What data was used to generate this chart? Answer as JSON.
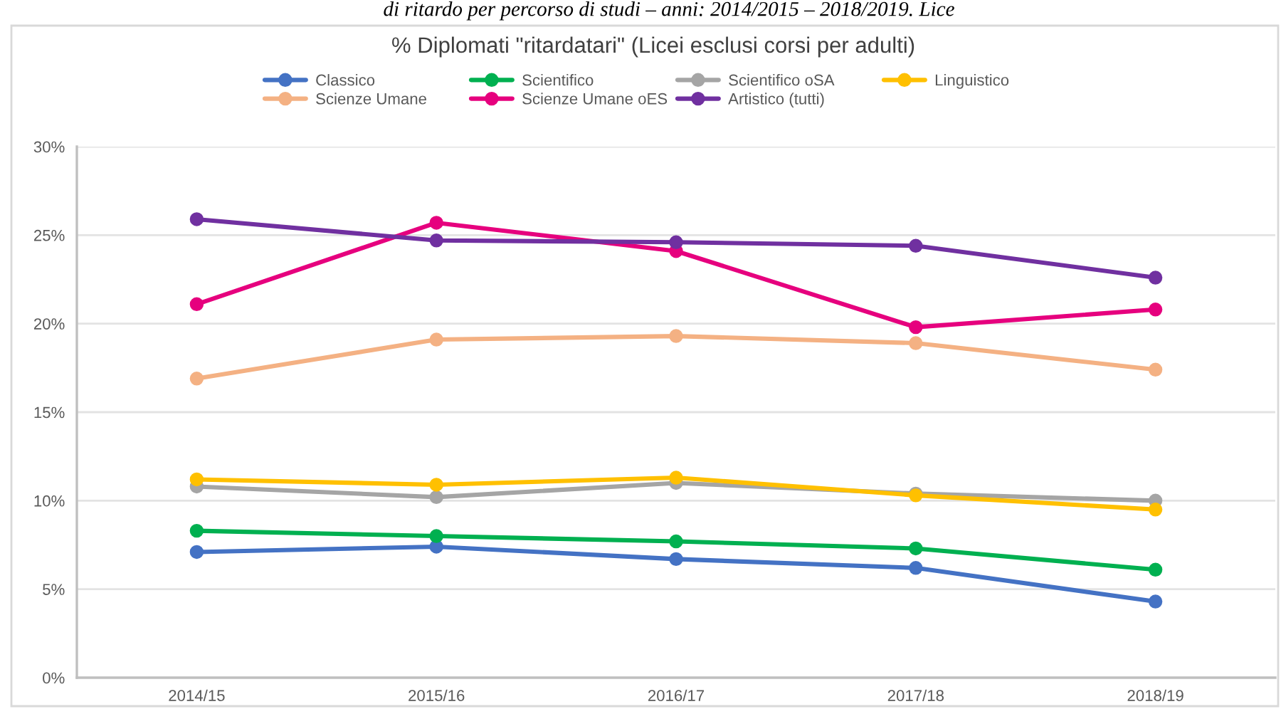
{
  "chart_data": {
    "type": "line",
    "title": "% Diplomati \"ritardatari\" (Licei esclusi corsi per adulti)",
    "annotations": [
      "di ritardo per percorso di studi – anni: 2014/2015 – 2018/2019. Lice"
    ],
    "categories": [
      "2014/15",
      "2015/16",
      "2016/17",
      "2017/18",
      "2018/19"
    ],
    "series": [
      {
        "name": "Classico",
        "color": "#4472c4",
        "values": [
          7.1,
          7.4,
          6.7,
          6.2,
          4.3
        ]
      },
      {
        "name": "Scientifico",
        "color": "#00b050",
        "values": [
          8.3,
          8.0,
          7.7,
          7.3,
          6.1
        ]
      },
      {
        "name": "Scientifico oSA",
        "color": "#a5a5a5",
        "values": [
          10.8,
          10.2,
          11.0,
          10.4,
          10.0
        ]
      },
      {
        "name": "Linguistico",
        "color": "#ffc000",
        "values": [
          11.2,
          10.9,
          11.3,
          10.3,
          9.5
        ]
      },
      {
        "name": "Scienze Umane",
        "color": "#f4b183",
        "values": [
          16.9,
          19.1,
          19.3,
          18.9,
          17.4
        ]
      },
      {
        "name": "Scienze Umane oES",
        "color": "#e6007e",
        "values": [
          21.1,
          25.7,
          24.1,
          19.8,
          20.8
        ]
      },
      {
        "name": "Artistico (tutti)",
        "color": "#7030a0",
        "values": [
          25.9,
          24.7,
          24.6,
          24.4,
          22.6
        ]
      }
    ],
    "ylim": [
      0,
      30
    ],
    "yticks": [
      {
        "value": 0,
        "label": "0%"
      },
      {
        "value": 5,
        "label": "5%"
      },
      {
        "value": 10,
        "label": "10%"
      },
      {
        "value": 15,
        "label": "15%"
      },
      {
        "value": 20,
        "label": "20%"
      },
      {
        "value": 25,
        "label": "25%"
      },
      {
        "value": 30,
        "label": "30%"
      }
    ],
    "grid": "y",
    "legend": "top",
    "marker": "circle",
    "line_style": "solid"
  }
}
